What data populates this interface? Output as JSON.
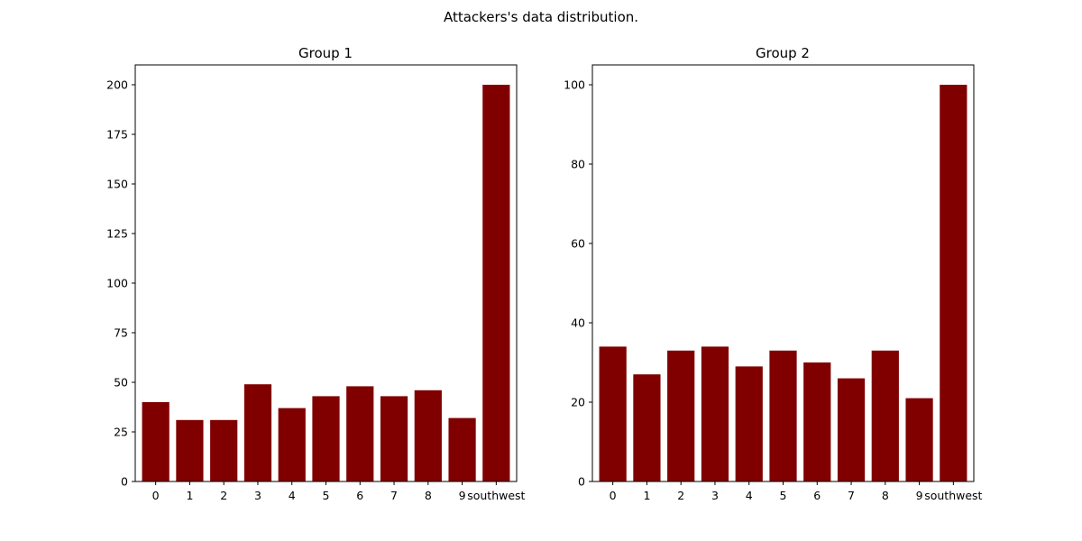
{
  "figure": {
    "suptitle": "Attackers's data distribution."
  },
  "chart_data": [
    {
      "type": "bar",
      "title": "Group 1",
      "xlabel": "",
      "ylabel": "",
      "categories": [
        "0",
        "1",
        "2",
        "3",
        "4",
        "5",
        "6",
        "7",
        "8",
        "9",
        "southwest"
      ],
      "values": [
        40,
        31,
        31,
        49,
        37,
        43,
        48,
        43,
        46,
        32,
        200
      ],
      "ylim": [
        0,
        210
      ],
      "yticks": [
        0,
        25,
        50,
        75,
        100,
        125,
        150,
        175,
        200
      ],
      "color": "#800000",
      "grid": false,
      "legend": "none"
    },
    {
      "type": "bar",
      "title": "Group 2",
      "xlabel": "",
      "ylabel": "",
      "categories": [
        "0",
        "1",
        "2",
        "3",
        "4",
        "5",
        "6",
        "7",
        "8",
        "9",
        "southwest"
      ],
      "values": [
        34,
        27,
        33,
        34,
        29,
        33,
        30,
        26,
        33,
        21,
        100
      ],
      "ylim": [
        0,
        105
      ],
      "yticks": [
        0,
        20,
        40,
        60,
        80,
        100
      ],
      "color": "#800000",
      "grid": false,
      "legend": "none"
    }
  ]
}
